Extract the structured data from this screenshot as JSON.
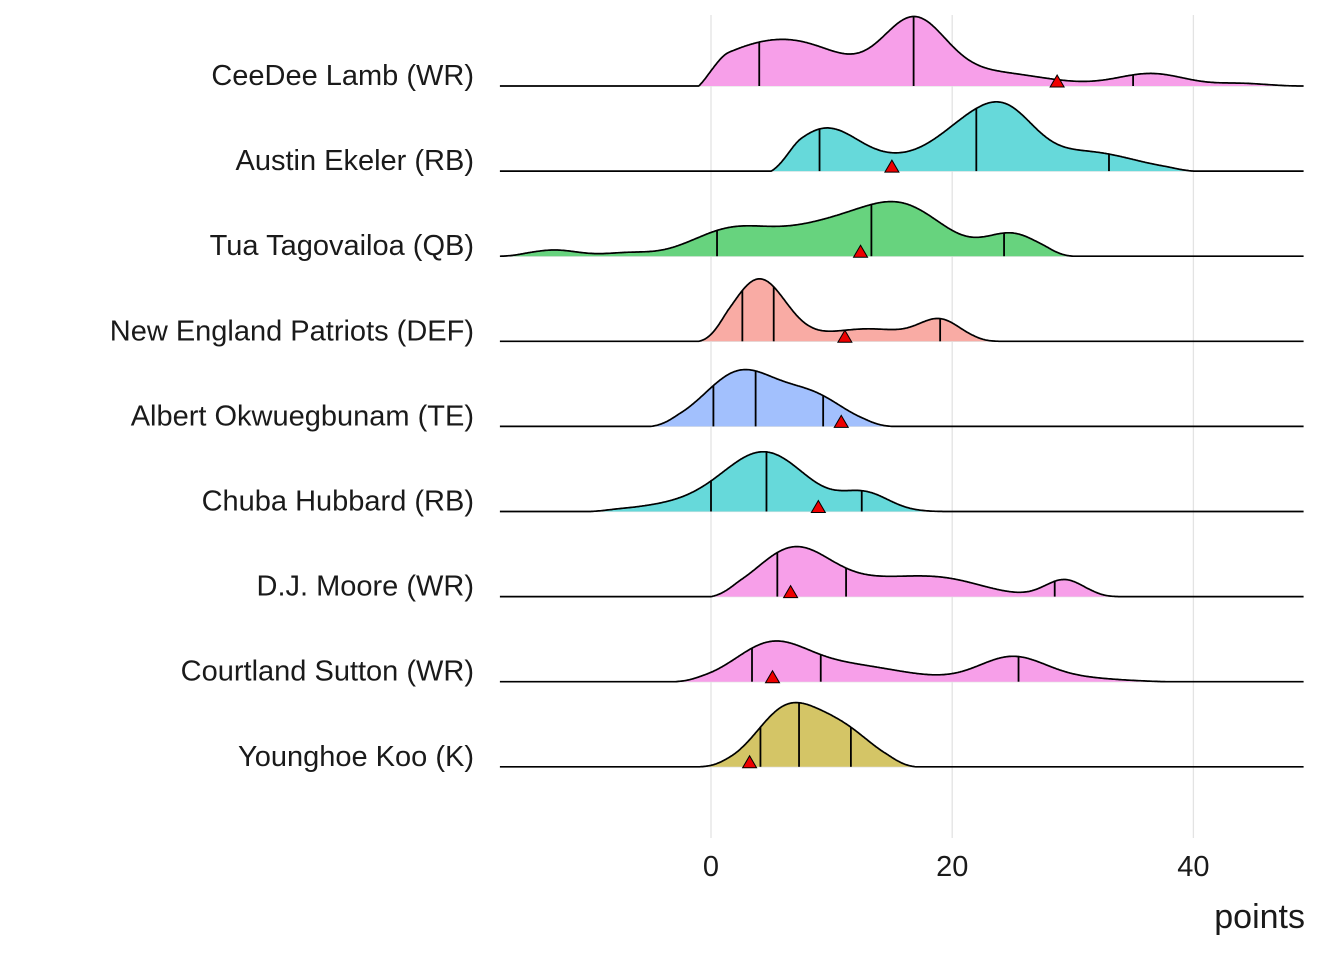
{
  "chart_data": {
    "type": "ridgeline",
    "title": "",
    "xlabel": "points",
    "ylabel": "",
    "xlim": [
      -17.5,
      49.2
    ],
    "x_ticks": [
      0,
      20,
      40
    ],
    "x_tick_labels": [
      "0",
      "20",
      "40"
    ],
    "grid": true,
    "marker_color": "#ee0000",
    "series": [
      {
        "name": "CeeDee Lamb (WR)",
        "color": "#f79fe9",
        "support": [
          -1,
          49
        ],
        "peaks": [
          [
            4,
            4.5,
            0.6
          ],
          [
            9,
            3.5,
            0.3
          ],
          [
            16.8,
            2.6,
            1.0
          ],
          [
            23,
            4.5,
            0.22
          ],
          [
            36.5,
            2.8,
            0.2
          ],
          [
            44,
            2,
            0.04
          ]
        ],
        "quantiles": [
          4,
          16.8,
          35
        ],
        "actual": 28.7
      },
      {
        "name": "Austin Ekeler (RB)",
        "color": "#66d9da",
        "support": [
          5,
          40
        ],
        "peaks": [
          [
            9.5,
            2.8,
            0.68
          ],
          [
            16,
            3,
            0.16
          ],
          [
            21.5,
            2.8,
            0.68
          ],
          [
            24.8,
            2.3,
            0.62
          ],
          [
            31,
            4,
            0.31
          ]
        ],
        "quantiles": [
          9,
          22,
          33
        ],
        "actual": 15
      },
      {
        "name": "Tua Tagovailoa (QB)",
        "color": "#67d37e",
        "support": [
          -17.5,
          30
        ],
        "peaks": [
          [
            -13,
            2,
            0.1
          ],
          [
            -7,
            1.8,
            0.05
          ],
          [
            1.5,
            3.2,
            0.38
          ],
          [
            10,
            4.5,
            0.5
          ],
          [
            16.2,
            3.4,
            0.65
          ],
          [
            25,
            2.2,
            0.35
          ]
        ],
        "quantiles": [
          0.5,
          13.3,
          24.3
        ],
        "actual": 12.4
      },
      {
        "name": "New England Patriots (DEF)",
        "color": "#f9aba4",
        "support": [
          -1,
          24
        ],
        "peaks": [
          [
            4,
            2.2,
            1.0
          ],
          [
            13,
            3.5,
            0.2
          ],
          [
            19,
            1.7,
            0.32
          ]
        ],
        "quantiles": [
          2.6,
          5.2,
          19
        ],
        "actual": 11.1
      },
      {
        "name": "Albert Okwuegbunam (TE)",
        "color": "#a2c0fd",
        "support": [
          -5,
          15
        ],
        "peaks": [
          [
            2.5,
            3,
            0.88
          ],
          [
            8.5,
            2.6,
            0.45
          ]
        ],
        "quantiles": [
          0.2,
          3.7,
          9.3
        ],
        "actual": 10.8
      },
      {
        "name": "Chuba Hubbard (RB)",
        "color": "#66d9da",
        "support": [
          -10,
          20
        ],
        "peaks": [
          [
            4.5,
            3.4,
            0.93
          ],
          [
            -2,
            4,
            0.12
          ],
          [
            12.8,
            2,
            0.28
          ]
        ],
        "quantiles": [
          0,
          4.6,
          12.5
        ],
        "actual": 8.9
      },
      {
        "name": "D.J. Moore (WR)",
        "color": "#f79fe9",
        "support": [
          0,
          34
        ],
        "peaks": [
          [
            6.8,
            3,
            0.73
          ],
          [
            15,
            5,
            0.28
          ],
          [
            20,
            3,
            0.12
          ],
          [
            29.3,
            1.6,
            0.27
          ]
        ],
        "quantiles": [
          5.5,
          11.2,
          28.5
        ],
        "actual": 6.6
      },
      {
        "name": "Courtland Sutton (WR)",
        "color": "#f79fe9",
        "support": [
          -3,
          38
        ],
        "peaks": [
          [
            5,
            3,
            0.6
          ],
          [
            11,
            3.5,
            0.22
          ],
          [
            16,
            3.5,
            0.08
          ],
          [
            25,
            2.8,
            0.4
          ],
          [
            31,
            3,
            0.05
          ]
        ],
        "quantiles": [
          3.4,
          9.1,
          25.5
        ],
        "actual": 5.1
      },
      {
        "name": "Younghoe Koo (K)",
        "color": "#d4c566",
        "support": [
          -1,
          17
        ],
        "peaks": [
          [
            6.2,
            2.5,
            0.88
          ],
          [
            10.8,
            2.6,
            0.58
          ]
        ],
        "quantiles": [
          4.1,
          7.3,
          11.6
        ],
        "actual": 3.2
      }
    ]
  }
}
